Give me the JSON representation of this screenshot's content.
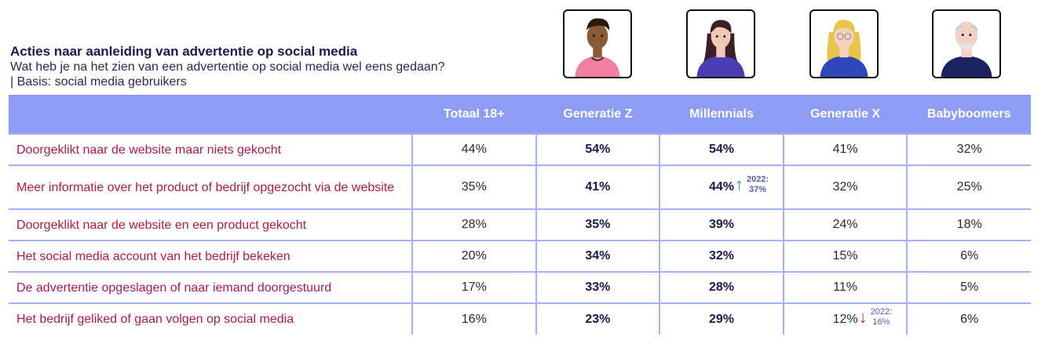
{
  "title": "Acties naar aanleiding van advertentie op social media",
  "subtitle": "Wat heb je na het zien van een advertentie op social media wel eens gedaan? | Basis: social media gebruikers",
  "colors": {
    "header_bg": "#8e9cf6",
    "label_text": "#b0194e",
    "up": "#2fa84f",
    "down": "#d32f2f"
  },
  "chart_data": {
    "type": "table",
    "columns": [
      "",
      "Totaal 18+",
      "Generatie Z",
      "Millennials",
      "Generatie X",
      "Babyboomers"
    ],
    "rows": [
      {
        "label": "Doorgeklikt naar de website maar niets gekocht",
        "values": [
          "44%",
          "54%",
          "54%",
          "41%",
          "32%"
        ]
      },
      {
        "label": "Meer informatie over het product of bedrijf opgezocht via de website",
        "values": [
          "35%",
          "41%",
          "44%",
          "32%",
          "25%"
        ]
      },
      {
        "label": "Doorgeklikt naar de website en een product gekocht",
        "values": [
          "28%",
          "35%",
          "39%",
          "24%",
          "18%"
        ]
      },
      {
        "label": "Het social media account van het bedrijf bekeken",
        "values": [
          "20%",
          "34%",
          "32%",
          "15%",
          "6%"
        ]
      },
      {
        "label": "De advertentie opgeslagen of naar iemand doorgestuurd",
        "values": [
          "17%",
          "33%",
          "28%",
          "11%",
          "5%"
        ]
      },
      {
        "label": "Het bedrijf geliked of gaan volgen op social media",
        "values": [
          "16%",
          "23%",
          "29%",
          "12%",
          "6%"
        ]
      }
    ],
    "bold_columns": [
      2,
      3
    ],
    "annotations": [
      {
        "row": 1,
        "column": 3,
        "direction": "up",
        "year": "2022:",
        "value": "37%"
      },
      {
        "row": 5,
        "column": 4,
        "direction": "down",
        "year": "2022:",
        "value": "16%"
      }
    ]
  }
}
